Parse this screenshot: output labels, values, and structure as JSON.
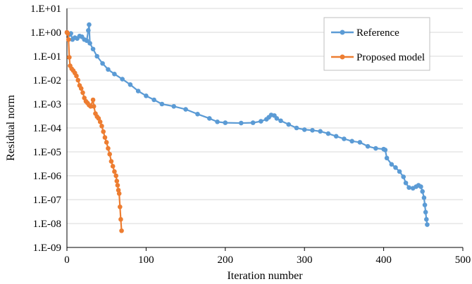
{
  "chart_data": {
    "type": "line",
    "xlabel": "Iteration number",
    "ylabel": "Residual norm",
    "xlim": [
      0,
      500
    ],
    "ylim": [
      1e-09,
      10
    ],
    "yscale": "log",
    "x_ticks": [
      "0",
      "100",
      "200",
      "300",
      "400",
      "500"
    ],
    "y_ticks": [
      "1.E+01",
      "1.E+00",
      "1.E-01",
      "1.E-02",
      "1.E-03",
      "1.E-04",
      "1.E-05",
      "1.E-06",
      "1.E-07",
      "1.E-08",
      "1.E-09"
    ],
    "grid": "horizontal",
    "legend_position": "top-right",
    "series": [
      {
        "name": "Reference",
        "color": "#5b9bd5",
        "points": [
          [
            0,
            1.0
          ],
          [
            3,
            0.8
          ],
          [
            5,
            0.9
          ],
          [
            7,
            0.5
          ],
          [
            10,
            0.6
          ],
          [
            13,
            0.55
          ],
          [
            16,
            0.7
          ],
          [
            19,
            0.65
          ],
          [
            22,
            0.5
          ],
          [
            25,
            0.45
          ],
          [
            27,
            1.2
          ],
          [
            28,
            2.1
          ],
          [
            29,
            0.35
          ],
          [
            33,
            0.2
          ],
          [
            38,
            0.1
          ],
          [
            45,
            0.05
          ],
          [
            52,
            0.028
          ],
          [
            60,
            0.018
          ],
          [
            70,
            0.011
          ],
          [
            80,
            0.0065
          ],
          [
            90,
            0.0035
          ],
          [
            100,
            0.0022
          ],
          [
            110,
            0.0015
          ],
          [
            120,
            0.001
          ],
          [
            135,
            0.0008
          ],
          [
            150,
            0.0006
          ],
          [
            165,
            0.00038
          ],
          [
            180,
            0.00025
          ],
          [
            190,
            0.00018
          ],
          [
            200,
            0.000165
          ],
          [
            220,
            0.00016
          ],
          [
            235,
            0.000165
          ],
          [
            245,
            0.00019
          ],
          [
            252,
            0.00023
          ],
          [
            255,
            0.00028
          ],
          [
            258,
            0.00035
          ],
          [
            262,
            0.00033
          ],
          [
            265,
            0.00025
          ],
          [
            270,
            0.0002
          ],
          [
            280,
            0.00014
          ],
          [
            290,
            0.0001
          ],
          [
            300,
            8.5e-05
          ],
          [
            310,
            8e-05
          ],
          [
            320,
            7.2e-05
          ],
          [
            330,
            5.8e-05
          ],
          [
            340,
            4.5e-05
          ],
          [
            350,
            3.5e-05
          ],
          [
            360,
            2.8e-05
          ],
          [
            370,
            2.5e-05
          ],
          [
            380,
            1.7e-05
          ],
          [
            390,
            1.4e-05
          ],
          [
            400,
            1.3e-05
          ],
          [
            402,
            1.2e-05
          ],
          [
            404,
            5.5e-06
          ],
          [
            410,
            3e-06
          ],
          [
            415,
            2.2e-06
          ],
          [
            420,
            1.5e-06
          ],
          [
            425,
            9e-07
          ],
          [
            428,
            5e-07
          ],
          [
            432,
            3.2e-07
          ],
          [
            437,
            3e-07
          ],
          [
            441,
            3.5e-07
          ],
          [
            444,
            4e-07
          ],
          [
            447,
            3.5e-07
          ],
          [
            449,
            2.2e-07
          ],
          [
            451,
            1.2e-07
          ],
          [
            452,
            6e-08
          ],
          [
            453,
            3e-08
          ],
          [
            454,
            1.5e-08
          ],
          [
            455,
            9e-09
          ]
        ]
      },
      {
        "name": "Proposed model",
        "color": "#ed7d31",
        "points": [
          [
            0,
            1.0
          ],
          [
            1,
            0.9
          ],
          [
            2,
            0.5
          ],
          [
            3,
            0.09
          ],
          [
            4,
            0.04
          ],
          [
            6,
            0.03
          ],
          [
            8,
            0.025
          ],
          [
            10,
            0.02
          ],
          [
            12,
            0.015
          ],
          [
            14,
            0.01
          ],
          [
            16,
            0.006
          ],
          [
            18,
            0.0045
          ],
          [
            20,
            0.003
          ],
          [
            22,
            0.0018
          ],
          [
            24,
            0.0013
          ],
          [
            26,
            0.0011
          ],
          [
            28,
            0.0009
          ],
          [
            30,
            0.0008
          ],
          [
            33,
            0.0015
          ],
          [
            34,
            0.0008
          ],
          [
            36,
            0.0004
          ],
          [
            38,
            0.0003
          ],
          [
            40,
            0.00025
          ],
          [
            42,
            0.00018
          ],
          [
            44,
            0.00012
          ],
          [
            46,
            7e-05
          ],
          [
            48,
            4e-05
          ],
          [
            50,
            2.5e-05
          ],
          [
            52,
            1.4e-05
          ],
          [
            54,
            8e-06
          ],
          [
            56,
            4e-06
          ],
          [
            58,
            2.5e-06
          ],
          [
            60,
            1.5e-06
          ],
          [
            62,
            1e-06
          ],
          [
            63,
            6e-07
          ],
          [
            64,
            4e-07
          ],
          [
            65,
            2.5e-07
          ],
          [
            66,
            1.8e-07
          ],
          [
            67,
            5e-08
          ],
          [
            68,
            1.5e-08
          ],
          [
            69,
            5e-09
          ]
        ]
      }
    ]
  }
}
